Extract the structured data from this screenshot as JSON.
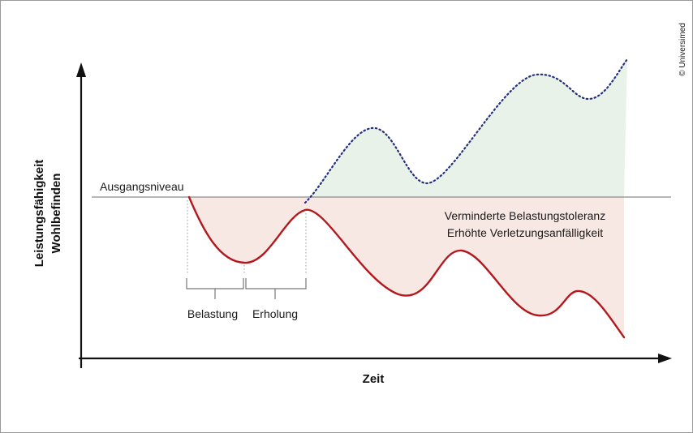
{
  "colors": {
    "axis": "#111111",
    "baseline": "#8c8c8c",
    "red_curve": "#b3181d",
    "red_fill": "#f8e8e4",
    "blue_curve": "#24307a",
    "green_fill": "#e9f2e8",
    "dotted_guide": "#999999"
  },
  "labels": {
    "x_axis": "Zeit",
    "y_axis_line1": "Leistungsfähigkeit",
    "y_axis_line2": "Wohlbefinden",
    "baseline": "Ausgangsniveau",
    "phase_load": "Belastung",
    "phase_recovery": "Erholung",
    "effect_line1": "Verminderte Belastungstoleranz",
    "effect_line2": "Erhöhte Verletzungsanfälligkeit",
    "copyright": "© Universimed"
  }
}
